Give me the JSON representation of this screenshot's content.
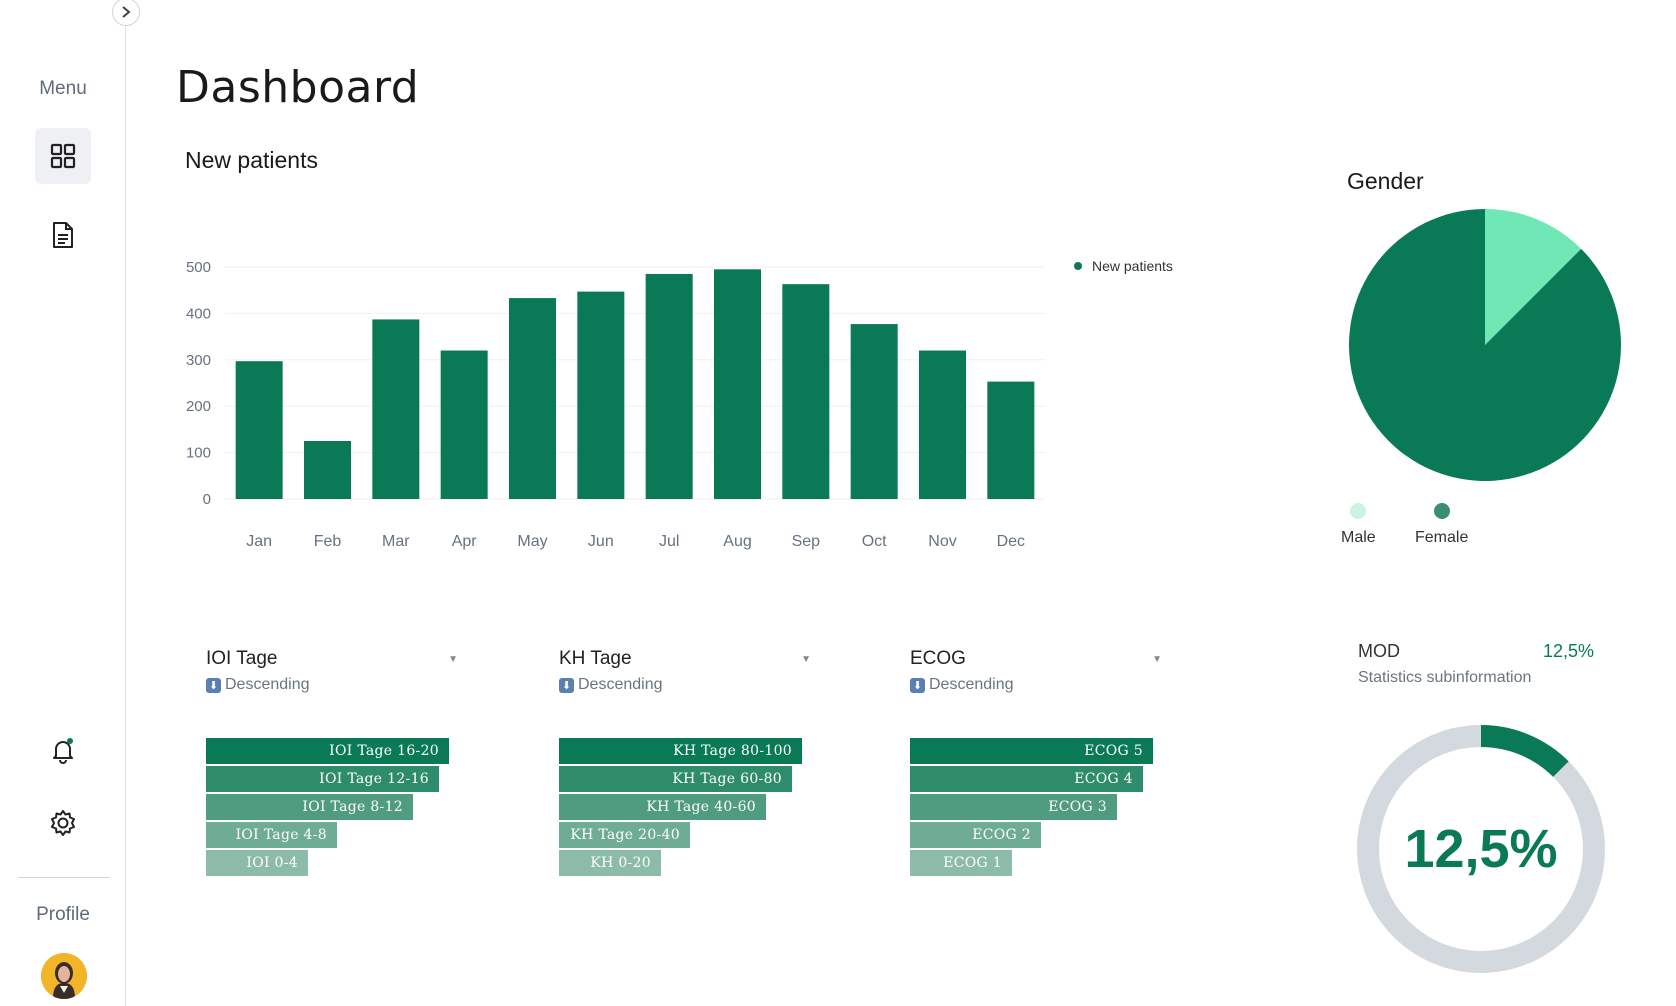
{
  "sidebar": {
    "menu_label": "Menu",
    "profile_label": "Profile",
    "items": [
      {
        "icon": "dashboard-grid-icon",
        "active": true
      },
      {
        "icon": "document-icon",
        "active": false
      }
    ],
    "bottom_icons": [
      "bell-icon",
      "gear-icon"
    ]
  },
  "page": {
    "title": "Dashboard"
  },
  "new_patients": {
    "title": "New patients",
    "legend_label": "New patients",
    "color": "#0a7a56"
  },
  "chart_data": [
    {
      "type": "bar",
      "categories": [
        "Jan",
        "Feb",
        "Mar",
        "Apr",
        "May",
        "Jun",
        "Jul",
        "Aug",
        "Sep",
        "Oct",
        "Nov",
        "Dec"
      ],
      "series": [
        {
          "name": "New patients",
          "values": [
            297,
            125,
            387,
            320,
            433,
            447,
            485,
            495,
            463,
            377,
            320,
            253
          ]
        }
      ],
      "yticks": [
        0,
        100,
        200,
        300,
        400,
        500
      ],
      "ylim": [
        0,
        500
      ],
      "grid": true,
      "legend_position": "top-right",
      "title": "New patients"
    },
    {
      "type": "pie",
      "title": "Gender",
      "labels": [
        "Male",
        "Female"
      ],
      "values": [
        12.5,
        87.5
      ],
      "colors": [
        "#6fe8b6",
        "#0a7a56"
      ]
    }
  ],
  "gender": {
    "title": "Gender",
    "male_label": "Male",
    "female_label": "Female",
    "male_color": "#c9f5e1",
    "female_color": "#3c8e6f"
  },
  "filters": [
    {
      "title": "IOI Tage",
      "sort_label": "Descending",
      "bars": [
        "IOI Tage 16-20",
        "IOI Tage 12-16",
        "IOI Tage 8-12",
        "IOI Tage 4-8",
        "IOI 0-4"
      ],
      "values": [
        100,
        96,
        85,
        54,
        42
      ]
    },
    {
      "title": "KH Tage",
      "sort_label": "Descending",
      "bars": [
        "KH Tage 80-100",
        "KH Tage 60-80",
        "KH Tage 40-60",
        "KH Tage 20-40",
        "KH 0-20"
      ],
      "values": [
        100,
        96,
        85,
        54,
        42
      ]
    },
    {
      "title": "ECOG",
      "sort_label": "Descending",
      "bars": [
        "ECOG 5",
        "ECOG 4",
        "ECOG 3",
        "ECOG 2",
        "ECOG 1"
      ],
      "values": [
        100,
        96,
        85,
        54,
        42
      ]
    }
  ],
  "funnel_colors": [
    "#0a7a56",
    "#2f8c6a",
    "#4f9c7e",
    "#6eac93",
    "#8cbca8"
  ],
  "mod": {
    "label": "MOD",
    "value": "12,5%",
    "subinfo": "Statistics subinformation",
    "gauge_text": "12,5%",
    "gauge_fraction": 0.125,
    "track_color": "#d3d9de",
    "fill_color": "#0a7a56"
  }
}
